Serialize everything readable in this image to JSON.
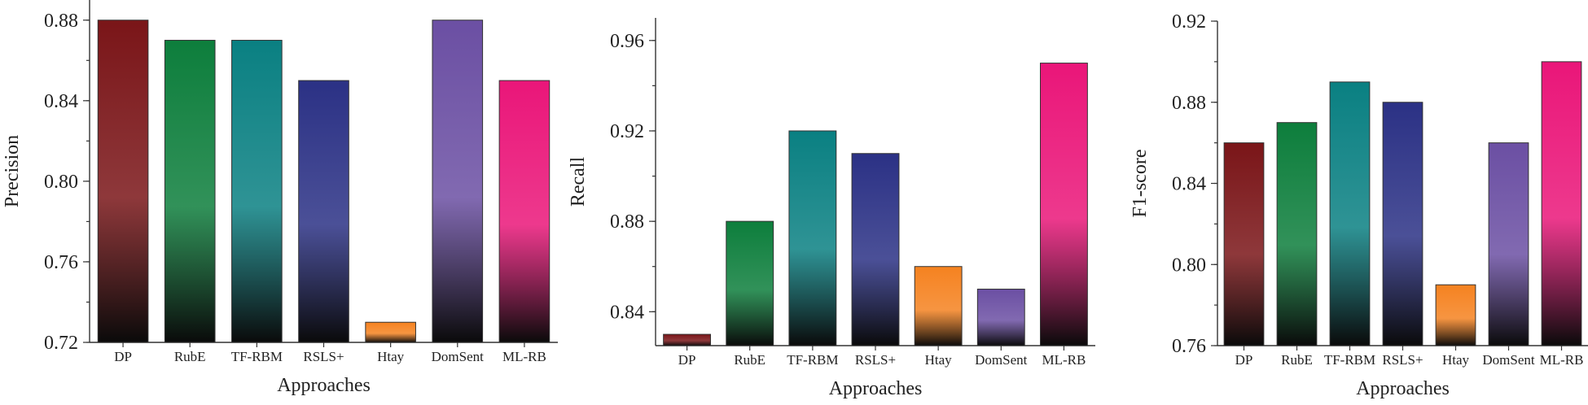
{
  "colors": {
    "DP": "#7a1518",
    "RubE": "#0d7e3c",
    "TF-RBM": "#0a8082",
    "RSLS+": "#2b3185",
    "Htay": "#f58220",
    "DomSent": "#6b4fa3",
    "ML-RB": "#ea1679"
  },
  "chart_data": [
    {
      "type": "bar",
      "categories": [
        "DP",
        "RubE",
        "TF-RBM",
        "RSLS+",
        "Htay",
        "DomSent",
        "ML-RB"
      ],
      "values": [
        0.88,
        0.87,
        0.87,
        0.85,
        0.73,
        0.88,
        0.85
      ],
      "xlabel": "Approaches",
      "ylabel": "Precision",
      "ylim": [
        0.72,
        0.89
      ],
      "yticks": [
        "0.72",
        "0.76",
        "0.80",
        "0.84",
        "0.88"
      ],
      "grid": false,
      "legend": "none"
    },
    {
      "type": "bar",
      "categories": [
        "DP",
        "RubE",
        "TF-RBM",
        "RSLS+",
        "Htay",
        "DomSent",
        "ML-RB"
      ],
      "values": [
        0.83,
        0.88,
        0.92,
        0.91,
        0.86,
        0.85,
        0.95
      ],
      "xlabel": "Approaches",
      "ylabel": "Recall",
      "ylim": [
        0.825,
        0.97
      ],
      "yticks": [
        "0.84",
        "0.88",
        "0.92",
        "0.96"
      ],
      "grid": false,
      "legend": "none"
    },
    {
      "type": "bar",
      "categories": [
        "DP",
        "RubE",
        "TF-RBM",
        "RSLS+",
        "Htay",
        "DomSent",
        "ML-RB"
      ],
      "values": [
        0.86,
        0.87,
        0.89,
        0.88,
        0.79,
        0.86,
        0.9
      ],
      "xlabel": "Approaches",
      "ylabel": "F1-score",
      "ylim": [
        0.76,
        0.92
      ],
      "yticks": [
        "0.76",
        "0.80",
        "0.84",
        "0.88",
        "0.92"
      ],
      "grid": false,
      "legend": "none"
    }
  ]
}
